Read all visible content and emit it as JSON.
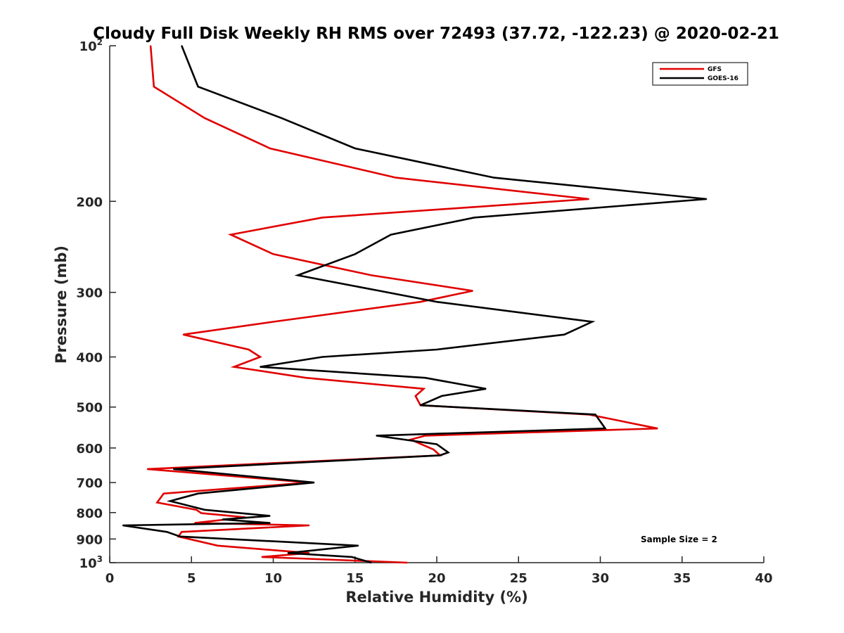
{
  "chart_data": {
    "type": "line",
    "title": "Cloudy Full Disk Weekly RH RMS over 72493 (37.72, -122.23) @ 2020-02-21",
    "xlabel": "Relative Humidity (%)",
    "ylabel": "Pressure (mb)",
    "xlim": [
      0,
      40
    ],
    "ylim": [
      100,
      1000
    ],
    "yscale": "log",
    "yreversed": true,
    "grid": false,
    "legend_position": "top-right",
    "x_ticks": [
      "0",
      "5",
      "10",
      "15",
      "20",
      "25",
      "30",
      "35",
      "40"
    ],
    "y_ticks": [
      {
        "value": 100,
        "base": "10",
        "exp": "2"
      },
      {
        "value": 200,
        "base": "200",
        "exp": ""
      },
      {
        "value": 300,
        "base": "300",
        "exp": ""
      },
      {
        "value": 400,
        "base": "400",
        "exp": ""
      },
      {
        "value": 500,
        "base": "500",
        "exp": ""
      },
      {
        "value": 600,
        "base": "600",
        "exp": ""
      },
      {
        "value": 700,
        "base": "700",
        "exp": ""
      },
      {
        "value": 800,
        "base": "800",
        "exp": ""
      },
      {
        "value": 900,
        "base": "900",
        "exp": ""
      },
      {
        "value": 1000,
        "base": "10",
        "exp": "3"
      }
    ],
    "annotation": "Sample Size = 2",
    "series": [
      {
        "name": "GFS",
        "color": "#e00000",
        "points": [
          [
            2.5,
            100
          ],
          [
            2.7,
            120
          ],
          [
            5.8,
            138
          ],
          [
            9.8,
            158
          ],
          [
            17.5,
            180
          ],
          [
            29.3,
            198
          ],
          [
            13,
            215
          ],
          [
            7.4,
            232
          ],
          [
            10,
            253
          ],
          [
            16,
            278
          ],
          [
            22.2,
            298
          ],
          [
            19,
            313
          ],
          [
            10,
            342
          ],
          [
            4.5,
            362
          ],
          [
            8.5,
            387
          ],
          [
            9.2,
            400
          ],
          [
            7.6,
            418
          ],
          [
            12,
            439
          ],
          [
            19.2,
            461
          ],
          [
            18.7,
            476
          ],
          [
            19,
            496
          ],
          [
            29.3,
            517
          ],
          [
            33.5,
            550
          ],
          [
            19.3,
            568
          ],
          [
            18.4,
            578
          ],
          [
            19.8,
            604
          ],
          [
            20.2,
            620
          ],
          [
            2.3,
            659
          ],
          [
            12.2,
            700
          ],
          [
            3.3,
            735
          ],
          [
            2.9,
            765
          ],
          [
            5.3,
            790
          ],
          [
            5.6,
            802
          ],
          [
            8.3,
            817
          ],
          [
            5.2,
            838
          ],
          [
            12.2,
            847
          ],
          [
            4.4,
            872
          ],
          [
            4.2,
            890
          ],
          [
            6.6,
            927
          ],
          [
            12.2,
            958
          ],
          [
            9.3,
            975
          ],
          [
            18.2,
            1000
          ]
        ]
      },
      {
        "name": "GOES-16",
        "color": "#000000",
        "points": [
          [
            4.4,
            100
          ],
          [
            5.4,
            120
          ],
          [
            10.5,
            138
          ],
          [
            15,
            158
          ],
          [
            23.5,
            180
          ],
          [
            36.5,
            198
          ],
          [
            22.3,
            215
          ],
          [
            17.2,
            232
          ],
          [
            15,
            253
          ],
          [
            11.5,
            278
          ],
          [
            16.5,
            298
          ],
          [
            20,
            313
          ],
          [
            29.5,
            342
          ],
          [
            27.8,
            362
          ],
          [
            20,
            387
          ],
          [
            13,
            400
          ],
          [
            9.2,
            418
          ],
          [
            19.3,
            439
          ],
          [
            23,
            461
          ],
          [
            20.3,
            476
          ],
          [
            19,
            496
          ],
          [
            29.7,
            517
          ],
          [
            30.3,
            550
          ],
          [
            16.3,
            568
          ],
          [
            20,
            590
          ],
          [
            20.7,
            612
          ],
          [
            20.2,
            620
          ],
          [
            3.9,
            659
          ],
          [
            12.5,
            700
          ],
          [
            5.4,
            735
          ],
          [
            3.7,
            760
          ],
          [
            5.8,
            790
          ],
          [
            9.8,
            812
          ],
          [
            6.9,
            825
          ],
          [
            9.8,
            838
          ],
          [
            0.8,
            847
          ],
          [
            3.5,
            872
          ],
          [
            4.3,
            890
          ],
          [
            15.2,
            927
          ],
          [
            10.9,
            958
          ],
          [
            14.8,
            975
          ],
          [
            16,
            1000
          ]
        ]
      }
    ]
  }
}
